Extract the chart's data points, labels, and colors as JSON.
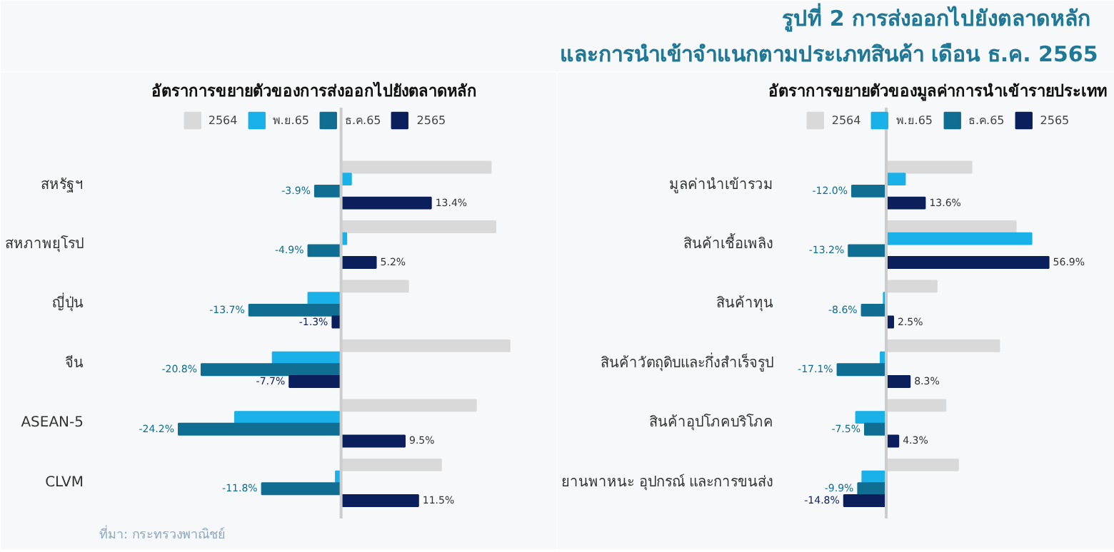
{
  "chart_data": [
    {
      "type": "other",
      "title": "รูปที่ 2  การส่งออกไปยังตลาดหลัก\nและการนำเข้าจำแนกตามประเภทสินค้า เดือน ธ.ค. 2565"
    },
    {
      "type": "bar",
      "orientation": "horizontal",
      "title": "อัตราการขยายตัวของการส่งออกไปยังตลาดหลัก",
      "categories": [
        "สหรัฐฯ",
        "สหภาพยุโรป",
        "ญี่ปุ่น",
        "จีน",
        "ASEAN-5",
        "CLVM"
      ],
      "xlim": [
        -36,
        28
      ],
      "tick_labels": "y",
      "legend": "top",
      "grid": false,
      "annotations": [
        "ที่มา: กระทรวงพาณิชย์"
      ],
      "series": [
        {
          "name": "2564",
          "color": "#d9d9d9",
          "values": [
            22.3,
            23.0,
            10.0,
            25.1,
            20.1,
            14.9
          ]
        },
        {
          "name": "พ.ย.65",
          "color": "#1ab0e8",
          "values": [
            1.5,
            0.8,
            -4.9,
            -10.2,
            -15.8,
            -0.8
          ]
        },
        {
          "name": "ธ.ค.65",
          "color": "#0f6e92",
          "values": [
            -3.9,
            -4.9,
            -13.7,
            -20.8,
            -24.2,
            -11.8
          ],
          "value_labels": [
            "-3.9%",
            "-4.9%",
            "-13.7%",
            "-20.8%",
            "-24.2%",
            "-11.8%"
          ]
        },
        {
          "name": "2565",
          "color": "#0b1f5c",
          "values": [
            13.4,
            5.2,
            -1.3,
            -7.7,
            9.5,
            11.5
          ],
          "value_labels": [
            "13.4%",
            "5.2%",
            "-1.3%",
            "-7.7%",
            "9.5%",
            "11.5%"
          ]
        }
      ]
    },
    {
      "type": "bar",
      "orientation": "horizontal",
      "title": "อัตราการขยายตัวของมูลค่าการนำเข้ารายประเทท",
      "categories": [
        "มูลค่านำเข้ารวม",
        "สินค้าเชื้อเพลิง",
        "สินค้าทุน",
        "สินค้าวัตถุดิบและกึ่งสำเร็จรูป",
        "สินค้าอุปโภคบริโภค",
        "ยานพาหนะ อุปกรณ์ และการขนส่ง"
      ],
      "xlim": [
        -34,
        70
      ],
      "tick_labels": "y",
      "legend": "top",
      "grid": false,
      "series": [
        {
          "name": "2564",
          "color": "#d9d9d9",
          "values": [
            29.9,
            45.4,
            17.7,
            39.6,
            20.8,
            25.2
          ]
        },
        {
          "name": "พ.ย.65",
          "color": "#1ab0e8",
          "values": [
            6.6,
            50.9,
            -0.9,
            -2.0,
            -10.6,
            -8.4
          ]
        },
        {
          "name": "ธ.ค.65",
          "color": "#0f6e92",
          "values": [
            -12.0,
            -13.2,
            -8.6,
            -17.1,
            -7.5,
            -9.9
          ],
          "value_labels": [
            "-12.0%",
            "-13.2%",
            "-8.6%",
            "-17.1%",
            "-7.5%",
            "-9.9%"
          ]
        },
        {
          "name": "2565",
          "color": "#0b1f5c",
          "values": [
            13.6,
            56.9,
            2.5,
            8.3,
            4.3,
            -14.8
          ],
          "value_labels": [
            "13.6%",
            "56.9%",
            "2.5%",
            "8.3%",
            "4.3%",
            "-14.8%"
          ]
        }
      ]
    }
  ]
}
